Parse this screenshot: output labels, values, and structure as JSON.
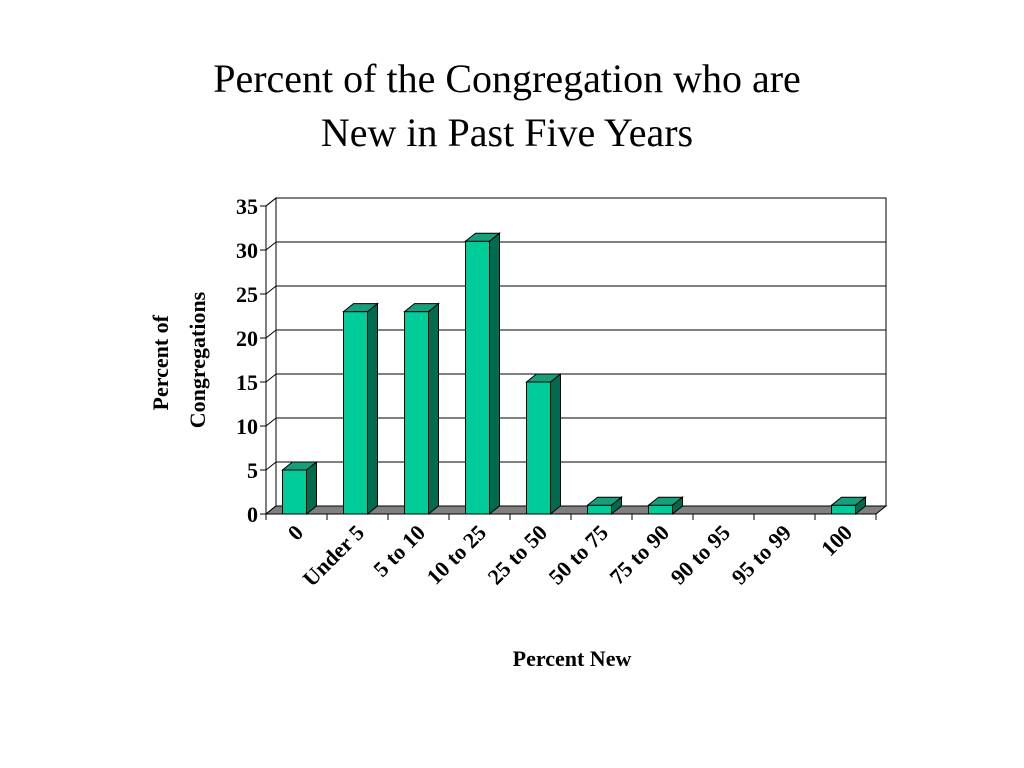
{
  "chart_data": {
    "type": "bar",
    "title": [
      "Percent of the Congregation who are",
      "New in Past Five Years"
    ],
    "xlabel": "Percent New",
    "ylabel": [
      "Percent of",
      "Congregations"
    ],
    "categories": [
      "0",
      "Under 5",
      "5 to 10",
      "10 to 25",
      "25 to 50",
      "50 to 75",
      "75 to 90",
      "90 to 95",
      "95 to 99",
      "100"
    ],
    "values": [
      5,
      23,
      23,
      31,
      15,
      1,
      1,
      0,
      0,
      1
    ],
    "ylim": [
      0,
      35
    ],
    "yticks": [
      "0",
      "5",
      "10",
      "15",
      "20",
      "25",
      "30",
      "35"
    ],
    "grid": true,
    "legend": "none",
    "style": "3d-column",
    "colors": {
      "bar_front": "#00cc99",
      "bar_side": "#006b4f",
      "bar_top": "#15a07b",
      "floor": "#808080",
      "grid": "#000000"
    }
  }
}
